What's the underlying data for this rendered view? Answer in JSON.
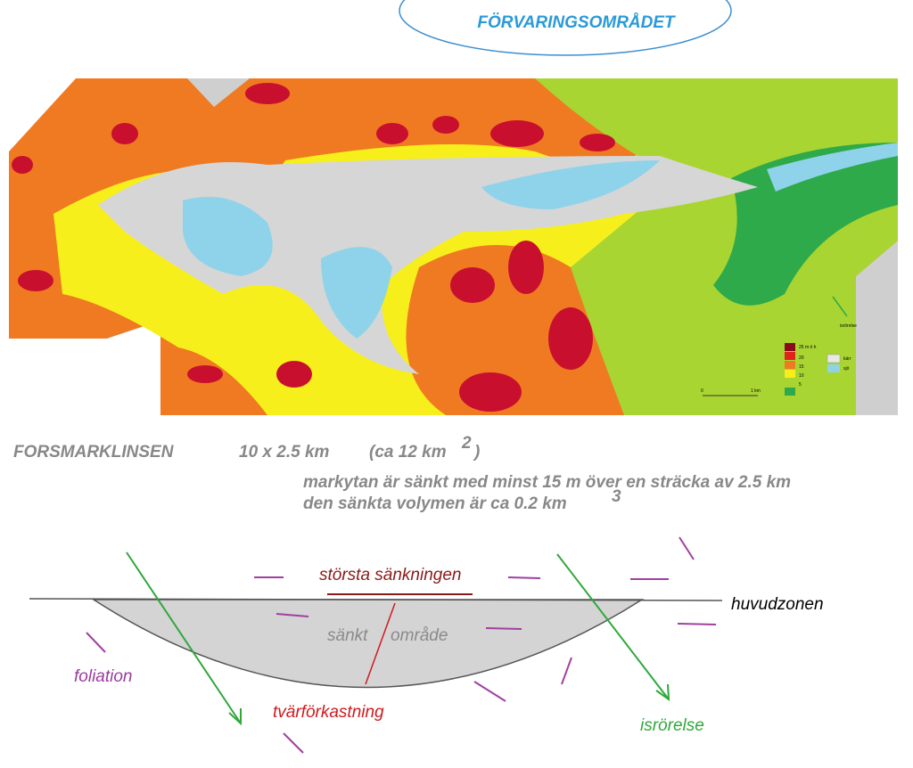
{
  "header": {
    "title": "FÖRVARINGSOMRÅDET"
  },
  "map": {
    "legend": {
      "elevation": [
        "25 m ö h",
        "20",
        "15",
        "10",
        "5"
      ],
      "other": [
        "kärr",
        "sjö"
      ]
    },
    "scale": [
      "0",
      "1 km"
    ],
    "arrow_label": "isrörelse"
  },
  "text": {
    "name": "FORSMARKLINSEN",
    "size": "10 x 2.5 km",
    "area": "(ca 12 km",
    "area_exp": "2",
    "area_close": ")",
    "line1": "markytan är sänkt med minst 15 m över en sträcka av 2.5 km",
    "line2": "den sänkta volymen är ca 0.2 km",
    "line2_exp": "3"
  },
  "section": {
    "max": "största sänkningen",
    "zone": "huvudzonen",
    "lowered_a": "sänkt",
    "lowered_b": "område",
    "foliation": "foliation",
    "fault": "tvärförkastning",
    "ice": "isrörelse"
  }
}
